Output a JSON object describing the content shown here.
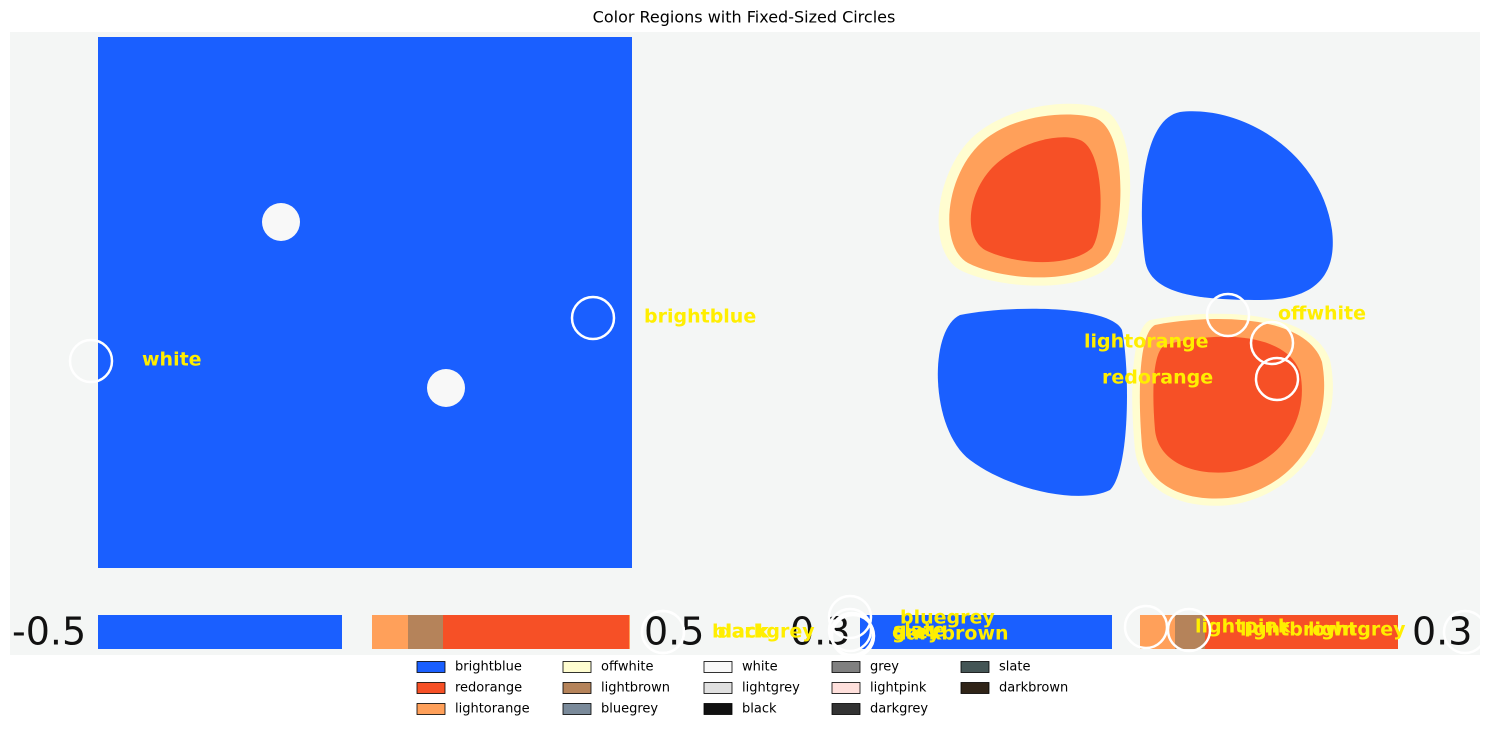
{
  "title": "Color Regions with Fixed-Sized Circles",
  "image_texts": [
    "-0.5",
    "0.5",
    "0.3",
    "0.3"
  ],
  "annotations": [
    {
      "label": "brightblue"
    },
    {
      "label": "white"
    },
    {
      "label": "offwhite"
    },
    {
      "label": "lightorange"
    },
    {
      "label": "redorange"
    },
    {
      "label": "bluegrey"
    },
    {
      "label": "grey"
    },
    {
      "label": "slate"
    },
    {
      "label": "darkbrown"
    },
    {
      "label": "black"
    },
    {
      "label": "darkgrey"
    },
    {
      "label": "lightpink"
    },
    {
      "label": "lightbrown"
    },
    {
      "label": "lightgrey"
    }
  ],
  "legend": [
    {
      "name": "brightblue",
      "color": "#1a5fff"
    },
    {
      "name": "redorange",
      "color": "#f65026"
    },
    {
      "name": "lightorange",
      "color": "#ffa05a"
    },
    {
      "name": "offwhite",
      "color": "#fffdd0"
    },
    {
      "name": "lightbrown",
      "color": "#b5835a"
    },
    {
      "name": "bluegrey",
      "color": "#7a8a9a"
    },
    {
      "name": "white",
      "color": "#f8f8f8"
    },
    {
      "name": "lightgrey",
      "color": "#e0e0e0"
    },
    {
      "name": "black",
      "color": "#111111"
    },
    {
      "name": "grey",
      "color": "#808080"
    },
    {
      "name": "lightpink",
      "color": "#ffe0dc"
    },
    {
      "name": "darkgrey",
      "color": "#333333"
    },
    {
      "name": "slate",
      "color": "#445555"
    },
    {
      "name": "darkbrown",
      "color": "#302418"
    }
  ]
}
